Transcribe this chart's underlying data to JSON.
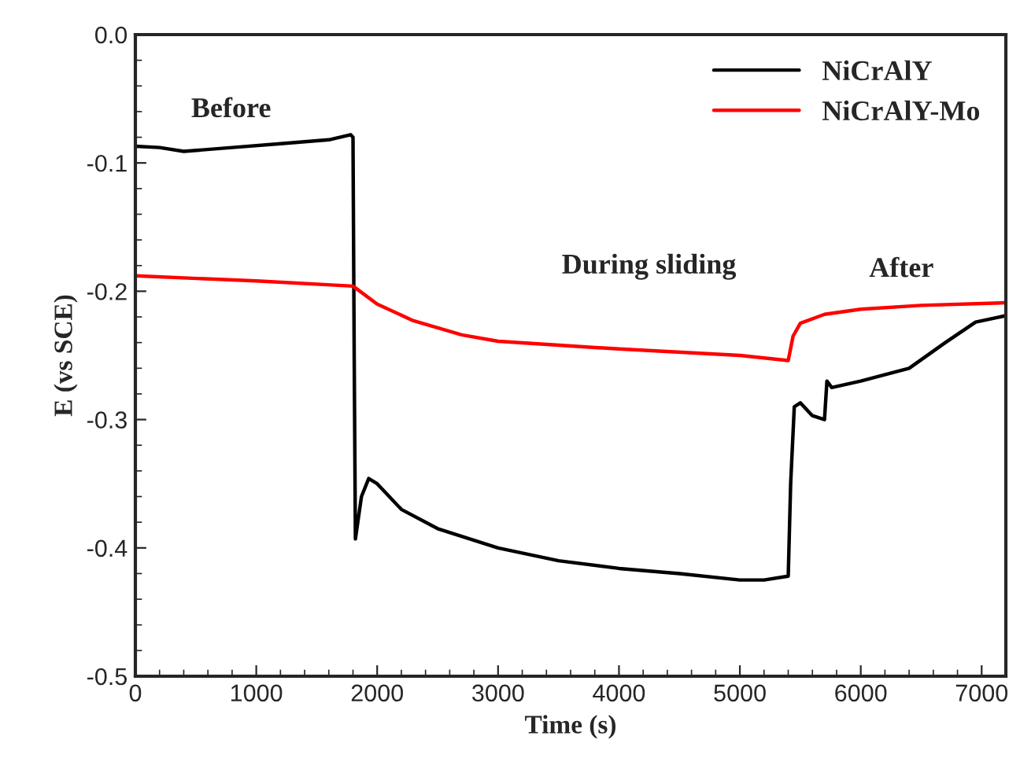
{
  "chart_data": {
    "type": "line",
    "xlabel": "Time (s)",
    "ylabel": "E (vs SCE)",
    "xlim": [
      0,
      7200
    ],
    "xticks": [
      0,
      1000,
      2000,
      3000,
      4000,
      5000,
      6000,
      7000
    ],
    "ylim": [
      -0.5,
      0.0
    ],
    "yticks": [
      {
        "value": -0.5,
        "label": "-0.5"
      },
      {
        "value": -0.4,
        "label": "-0.4"
      },
      {
        "value": -0.3,
        "label": "-0.3"
      },
      {
        "value": -0.2,
        "label": "-0.2"
      },
      {
        "value": -0.1,
        "label": "-0.1"
      },
      {
        "value": 0.0,
        "label": "0.0"
      }
    ],
    "grid": false,
    "legend": "top right",
    "line_style": "solid",
    "marker": "none",
    "series": [
      {
        "name": "NiCrAlY",
        "color": "#000000",
        "x": [
          0,
          200,
          400,
          800,
          1200,
          1600,
          1780,
          1800,
          1810,
          1820,
          1870,
          1930,
          2000,
          2200,
          2500,
          3000,
          3500,
          4000,
          4500,
          5000,
          5200,
          5400,
          5420,
          5450,
          5500,
          5600,
          5700,
          5720,
          5760,
          6000,
          6400,
          6700,
          6950,
          7200
        ],
        "values": [
          -0.087,
          -0.088,
          -0.091,
          -0.088,
          -0.085,
          -0.082,
          -0.078,
          -0.08,
          -0.25,
          -0.393,
          -0.36,
          -0.346,
          -0.35,
          -0.37,
          -0.385,
          -0.4,
          -0.41,
          -0.416,
          -0.42,
          -0.425,
          -0.425,
          -0.422,
          -0.35,
          -0.29,
          -0.287,
          -0.297,
          -0.3,
          -0.27,
          -0.275,
          -0.27,
          -0.26,
          -0.24,
          -0.224,
          -0.219
        ]
      },
      {
        "name": "NiCrAlY-Mo",
        "color": "#ff0000",
        "x": [
          0,
          1000,
          1800,
          2000,
          2300,
          2700,
          3000,
          4000,
          5000,
          5400,
          5440,
          5500,
          5700,
          6000,
          6500,
          7200
        ],
        "values": [
          -0.188,
          -0.192,
          -0.196,
          -0.21,
          -0.223,
          -0.234,
          -0.239,
          -0.245,
          -0.25,
          -0.254,
          -0.235,
          -0.225,
          -0.218,
          -0.214,
          -0.211,
          -0.209
        ]
      }
    ],
    "annotations": [
      "Before",
      "During sliding",
      "After"
    ]
  }
}
